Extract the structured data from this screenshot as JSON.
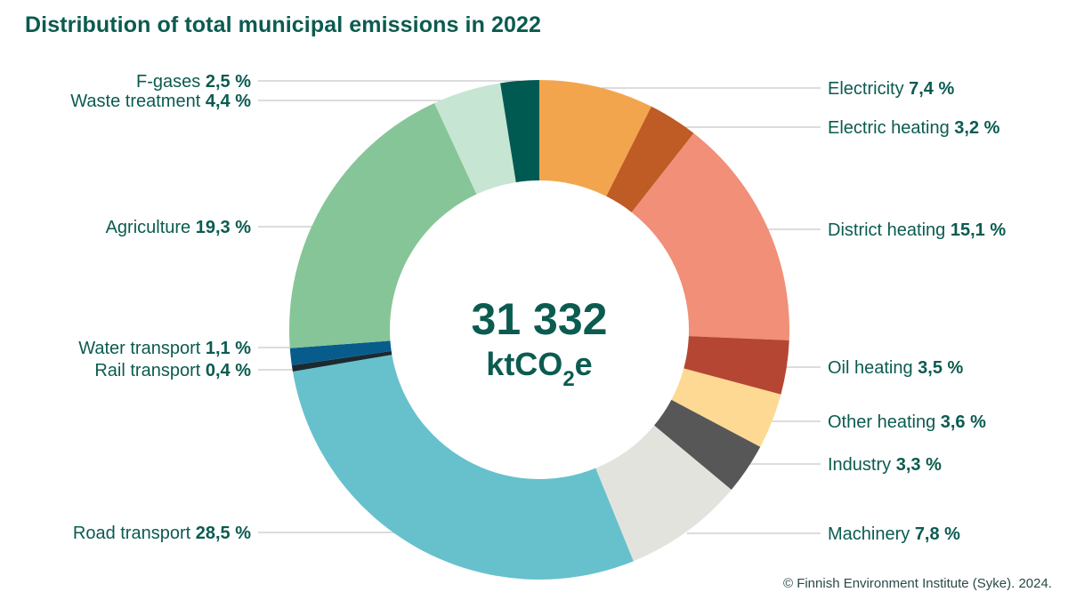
{
  "title": "Distribution of total municipal emissions in 2022",
  "source": "© Finnish Environment Institute (Syke). 2024.",
  "center": {
    "total": "31 332",
    "unit_pre": "ktCO",
    "unit_sub": "2",
    "unit_post": "e"
  },
  "chart_data": {
    "type": "pie",
    "donut": true,
    "title": "Distribution of total municipal emissions in 2022",
    "total": 31332,
    "unit": "ktCO2e",
    "slices": [
      {
        "label": "Electricity",
        "value": 7.4,
        "value_text": "7,4 %",
        "color": "#f3a54d",
        "side": "right"
      },
      {
        "label": "Electric heating",
        "value": 3.2,
        "value_text": "3,2 %",
        "color": "#bf5b25",
        "side": "right"
      },
      {
        "label": "District heating",
        "value": 15.1,
        "value_text": "15,1 %",
        "color": "#f18f78",
        "side": "right"
      },
      {
        "label": "Oil heating",
        "value": 3.5,
        "value_text": "3,5 %",
        "color": "#b54634",
        "side": "right"
      },
      {
        "label": "Other heating",
        "value": 3.6,
        "value_text": "3,6 %",
        "color": "#fdd994",
        "side": "right"
      },
      {
        "label": "Industry",
        "value": 3.3,
        "value_text": "3,3 %",
        "color": "#575757",
        "side": "right"
      },
      {
        "label": "Machinery",
        "value": 7.8,
        "value_text": "7,8 %",
        "color": "#e3e3de",
        "side": "right"
      },
      {
        "label": "Road transport",
        "value": 28.5,
        "value_text": "28,5 %",
        "color": "#66c1cc",
        "side": "left"
      },
      {
        "label": "Rail transport",
        "value": 0.4,
        "value_text": "0,4 %",
        "color": "#1c2a30",
        "side": "left"
      },
      {
        "label": "Water transport",
        "value": 1.1,
        "value_text": "1,1 %",
        "color": "#075c8c",
        "side": "left"
      },
      {
        "label": "Agriculture",
        "value": 19.3,
        "value_text": "19,3 %",
        "color": "#86c597",
        "side": "left"
      },
      {
        "label": "Waste treatment",
        "value": 4.4,
        "value_text": "4,4 %",
        "color": "#c7e5d3",
        "side": "left"
      },
      {
        "label": "F-gases",
        "value": 2.5,
        "value_text": "2,5 %",
        "color": "#005a51",
        "side": "left"
      }
    ]
  }
}
